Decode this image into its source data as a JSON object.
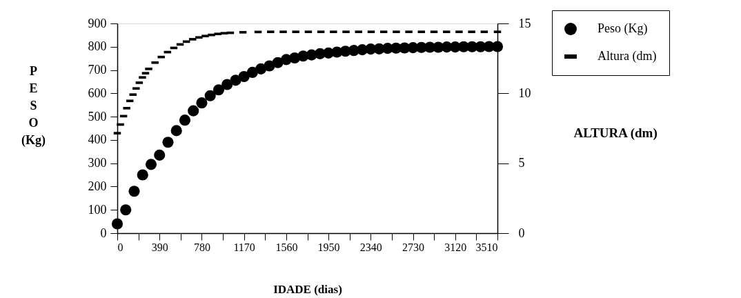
{
  "chart_data": {
    "type": "scatter",
    "xlabel": "IDADE (dias)",
    "ylabel": "PESO (Kg)",
    "y2label": "ALTURA (dm)",
    "xlim": [
      0,
      3510
    ],
    "xticks": [
      0,
      {
        "value": 195,
        "label": null
      },
      390,
      {
        "value": 585,
        "label": null
      },
      780,
      {
        "value": 975,
        "label": null
      },
      1170,
      {
        "value": 1365,
        "label": null
      },
      1560,
      {
        "value": 1755,
        "label": null
      },
      1950,
      {
        "value": 2145,
        "label": null
      },
      2340,
      {
        "value": 2535,
        "label": null
      },
      2730,
      {
        "value": 2925,
        "label": null
      },
      3120,
      {
        "value": 3315,
        "label": null
      },
      3510
    ],
    "ylim": [
      0,
      900
    ],
    "yticks": [
      0,
      100,
      200,
      300,
      400,
      500,
      600,
      700,
      800,
      900
    ],
    "y2lim": [
      0,
      15
    ],
    "y2ticks": [
      0,
      5,
      10,
      15
    ],
    "grid": false,
    "legend": "top right",
    "series": [
      {
        "name": "Peso (Kg)",
        "color": "#000000",
        "marker": "circle",
        "x": [
          0,
          78,
          156,
          234,
          312,
          390,
          468,
          546,
          624,
          702,
          780,
          858,
          936,
          1014,
          1092,
          1170,
          1248,
          1326,
          1404,
          1482,
          1560,
          1638,
          1716,
          1794,
          1872,
          1950,
          2028,
          2106,
          2184,
          2262,
          2340,
          2418,
          2496,
          2574,
          2652,
          2730,
          2808,
          2886,
          2964,
          3042,
          3120,
          3198,
          3276,
          3354,
          3432,
          3510
        ],
        "values": [
          40,
          100,
          180,
          250,
          295,
          335,
          390,
          440,
          485,
          525,
          559,
          590,
          615,
          638,
          656,
          672,
          690,
          705,
          718,
          732,
          745,
          752,
          760,
          765,
          770,
          773,
          777,
          781,
          784,
          787,
          790,
          791,
          793,
          794,
          795,
          796,
          797,
          798,
          798,
          799,
          799,
          800,
          800,
          800,
          801,
          801
        ]
      },
      {
        "name": "Altura (dm)",
        "color": "#000000",
        "marker": "square",
        "axis": "y2",
        "x": [
          0,
          29,
          58,
          87,
          116,
          145,
          174,
          203,
          232,
          261,
          290,
          348,
          406,
          464,
          522,
          580,
          638,
          696,
          754,
          812,
          870,
          928,
          986,
          1044,
          1160,
          1300,
          1416,
          1532,
          1648,
          1764,
          1880,
          1996,
          2112,
          2228,
          2344,
          2460,
          2576,
          2692,
          2808,
          2924,
          3040,
          3156,
          3272,
          3388,
          3510
        ],
        "values": [
          7.15,
          7.77,
          8.37,
          8.94,
          9.46,
          9.91,
          10.35,
          10.76,
          11.14,
          11.44,
          11.75,
          12.2,
          12.6,
          12.95,
          13.25,
          13.5,
          13.7,
          13.87,
          14.0,
          14.1,
          14.18,
          14.25,
          14.3,
          14.33,
          14.37,
          14.39,
          14.4,
          14.4,
          14.4,
          14.4,
          14.4,
          14.4,
          14.4,
          14.4,
          14.4,
          14.4,
          14.4,
          14.4,
          14.4,
          14.4,
          14.4,
          14.4,
          14.4,
          14.4,
          14.4
        ]
      }
    ]
  }
}
